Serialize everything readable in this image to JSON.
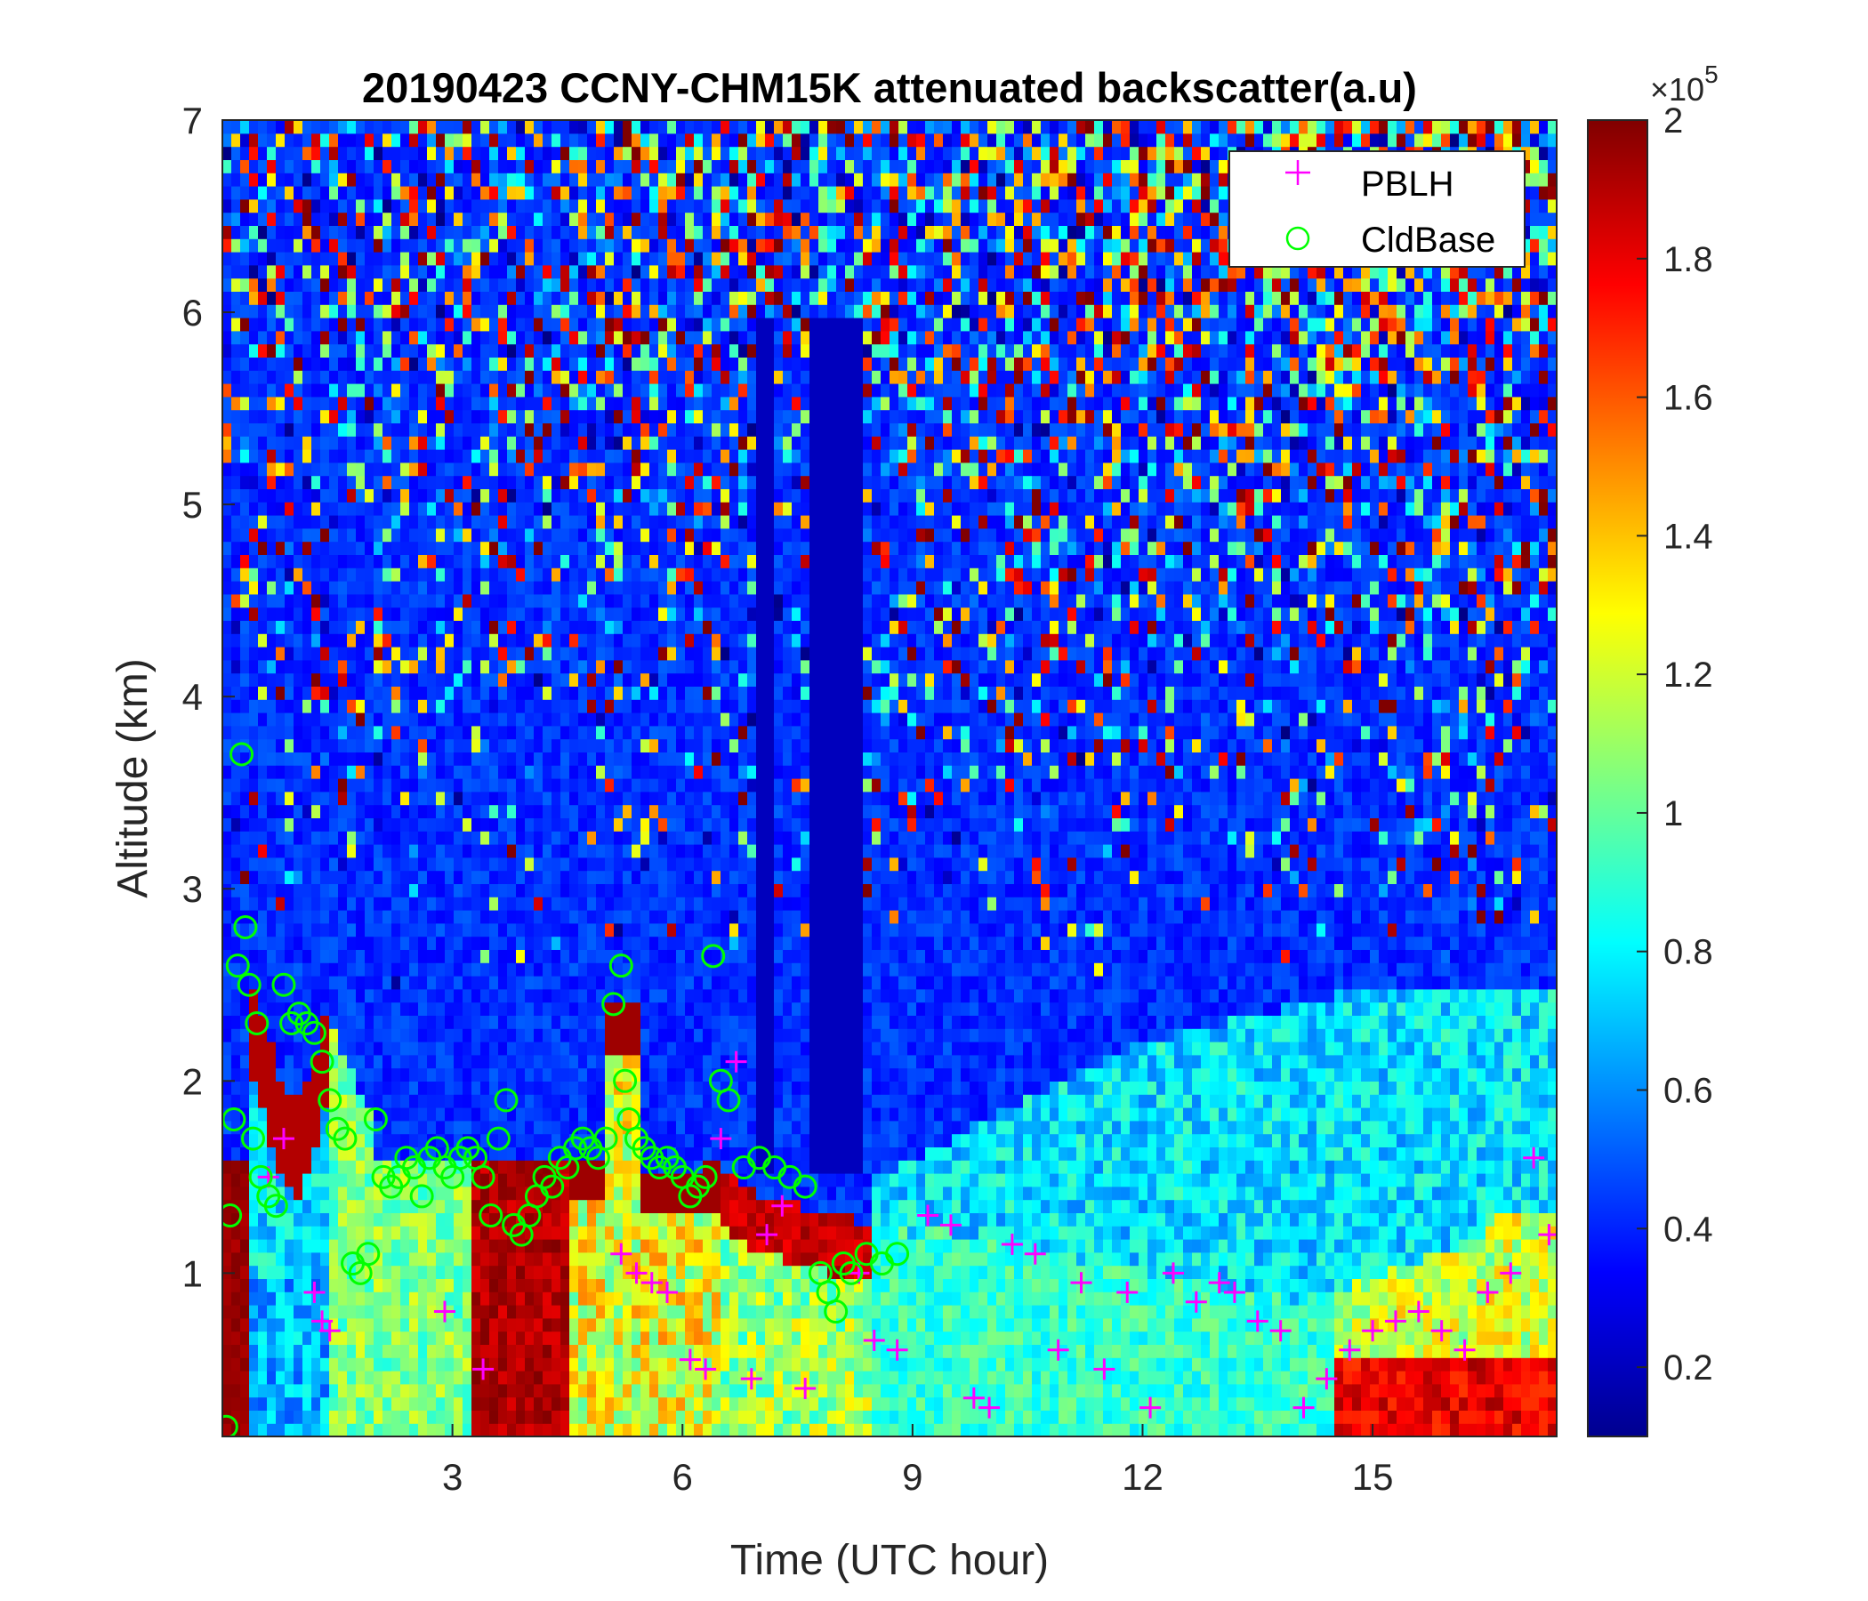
{
  "chart_data": {
    "type": "heatmap",
    "title": "20190423 CCNY-CHM15K attenuated backscatter(a.u)",
    "xlabel": "Time (UTC hour)",
    "ylabel": "Altitude (km)",
    "xlim": [
      0,
      17.4
    ],
    "ylim": [
      0.15,
      7
    ],
    "xticks": [
      3,
      6,
      9,
      12,
      15
    ],
    "yticks": [
      1,
      2,
      3,
      4,
      5,
      6,
      7
    ],
    "colorbar": {
      "colormap": "jet",
      "range": [
        10000,
        200000
      ],
      "ticks": [
        0.2,
        0.4,
        0.6,
        0.8,
        1,
        1.2,
        1.4,
        1.6,
        1.8,
        2
      ],
      "multiplier_base": "×10",
      "multiplier_exponent": "5"
    },
    "legend": {
      "placement": "top-right",
      "entries": [
        {
          "label": "PBLH",
          "marker": "plus",
          "color": "#ff00ff"
        },
        {
          "label": "CldBase",
          "marker": "circle",
          "color": "#00ff00"
        }
      ]
    },
    "series": [
      {
        "name": "PBLH",
        "x": [
          0.6,
          0.8,
          1.2,
          1.3,
          1.4,
          2.9,
          3.4,
          5.2,
          5.4,
          5.6,
          5.8,
          6.1,
          6.3,
          6.5,
          6.7,
          6.9,
          7.1,
          7.3,
          7.6,
          8.3,
          8.5,
          8.8,
          9.2,
          9.5,
          9.8,
          10.0,
          10.3,
          10.6,
          10.9,
          11.2,
          11.5,
          11.8,
          12.1,
          12.4,
          12.7,
          13.0,
          13.2,
          13.5,
          13.8,
          14.1,
          14.4,
          14.7,
          15.0,
          15.3,
          15.6,
          15.9,
          16.2,
          16.5,
          16.8,
          17.1,
          17.3
        ],
        "y": [
          1.5,
          1.7,
          0.9,
          0.75,
          0.7,
          0.8,
          0.5,
          1.1,
          1.0,
          0.95,
          0.9,
          0.55,
          0.5,
          1.7,
          2.1,
          0.45,
          1.2,
          1.35,
          0.4,
          1.0,
          0.65,
          0.6,
          1.3,
          1.25,
          0.35,
          0.3,
          1.15,
          1.1,
          0.6,
          0.95,
          0.5,
          0.9,
          0.3,
          1.0,
          0.85,
          0.95,
          0.9,
          0.75,
          0.7,
          0.3,
          0.45,
          0.6,
          0.7,
          0.75,
          0.8,
          0.7,
          0.6,
          0.9,
          1.0,
          1.6,
          1.2
        ]
      },
      {
        "name": "CldBase",
        "x": [
          0.05,
          0.1,
          0.15,
          0.2,
          0.25,
          0.3,
          0.35,
          0.4,
          0.45,
          0.5,
          0.6,
          0.7,
          0.8,
          0.9,
          1.0,
          1.1,
          1.2,
          1.3,
          1.4,
          1.5,
          1.6,
          1.7,
          1.8,
          1.9,
          2.0,
          2.1,
          2.2,
          2.3,
          2.4,
          2.5,
          2.6,
          2.7,
          2.8,
          2.9,
          3.0,
          3.1,
          3.2,
          3.3,
          3.4,
          3.5,
          3.6,
          3.7,
          3.8,
          3.9,
          4.0,
          4.1,
          4.2,
          4.3,
          4.4,
          4.5,
          4.6,
          4.7,
          4.8,
          4.9,
          5.0,
          5.1,
          5.2,
          5.25,
          5.3,
          5.4,
          5.5,
          5.6,
          5.7,
          5.8,
          5.9,
          6.0,
          6.1,
          6.2,
          6.3,
          6.4,
          6.5,
          6.6,
          6.8,
          7.0,
          7.2,
          7.4,
          7.6,
          7.8,
          7.9,
          8.0,
          8.1,
          8.2,
          8.4,
          8.6,
          8.8
        ],
        "y": [
          0.2,
          1.3,
          1.8,
          2.6,
          3.7,
          2.8,
          2.5,
          1.7,
          2.3,
          1.5,
          1.4,
          1.35,
          2.5,
          2.3,
          2.35,
          2.3,
          2.25,
          2.1,
          1.9,
          1.75,
          1.7,
          1.05,
          1.0,
          1.1,
          1.8,
          1.5,
          1.45,
          1.5,
          1.6,
          1.55,
          1.4,
          1.6,
          1.65,
          1.55,
          1.5,
          1.6,
          1.65,
          1.6,
          1.5,
          1.3,
          1.7,
          1.9,
          1.25,
          1.2,
          1.3,
          1.4,
          1.5,
          1.45,
          1.6,
          1.55,
          1.65,
          1.7,
          1.65,
          1.6,
          1.7,
          2.4,
          2.6,
          2.0,
          1.8,
          1.7,
          1.65,
          1.6,
          1.55,
          1.6,
          1.55,
          1.5,
          1.4,
          1.45,
          1.5,
          2.65,
          2.0,
          1.9,
          1.55,
          1.6,
          1.55,
          1.5,
          1.45,
          1.0,
          0.9,
          0.8,
          1.05,
          1.0,
          1.1,
          1.05,
          1.1
        ]
      }
    ]
  }
}
